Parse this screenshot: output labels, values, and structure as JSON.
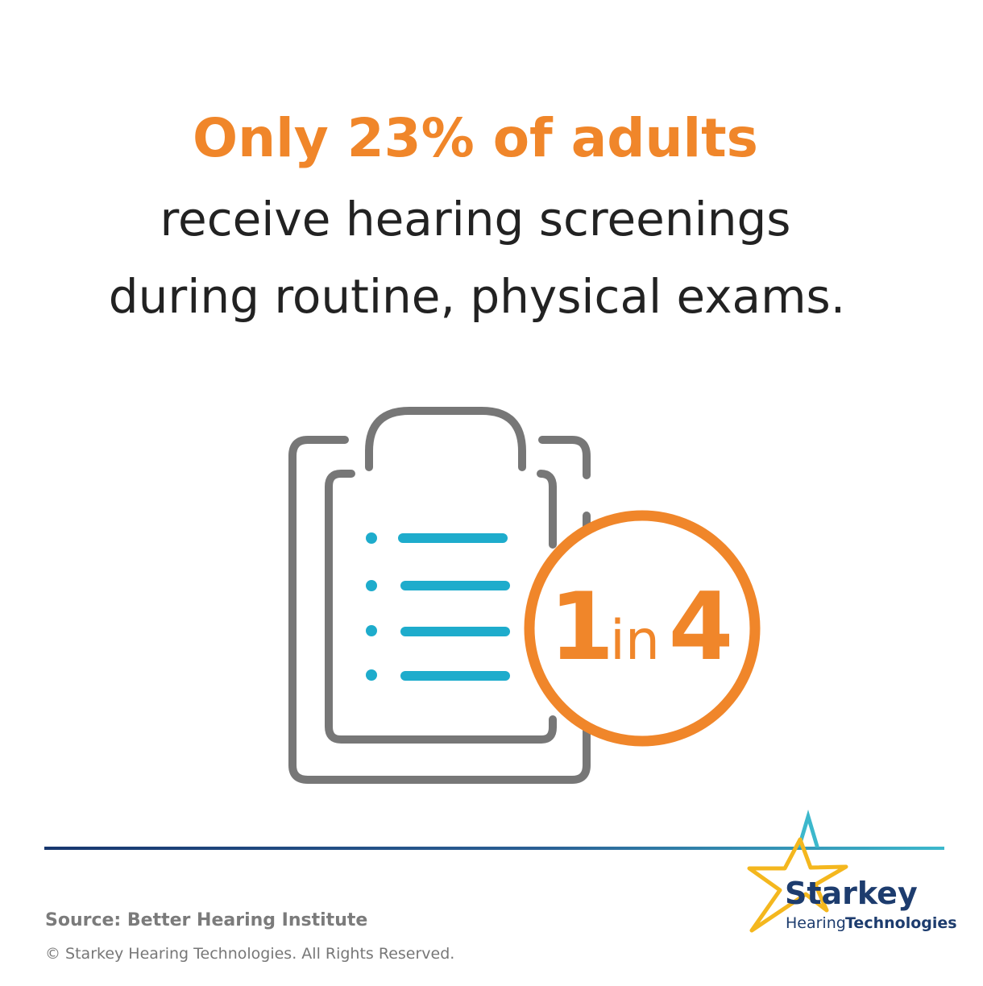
{
  "headline": {
    "highlight": "Only 23% of adults",
    "line1": "receive hearing screenings",
    "line2": "during routine, physical exams."
  },
  "badge": {
    "number": "1",
    "word": "in",
    "total": "4"
  },
  "footer": {
    "source": "Source: Better Hearing Institute",
    "copyright": "© Starkey Hearing Technologies. All Rights Reserved."
  },
  "logo": {
    "brand": "Starkey",
    "sub1": "Hearing",
    "sub2": "Technologies"
  }
}
